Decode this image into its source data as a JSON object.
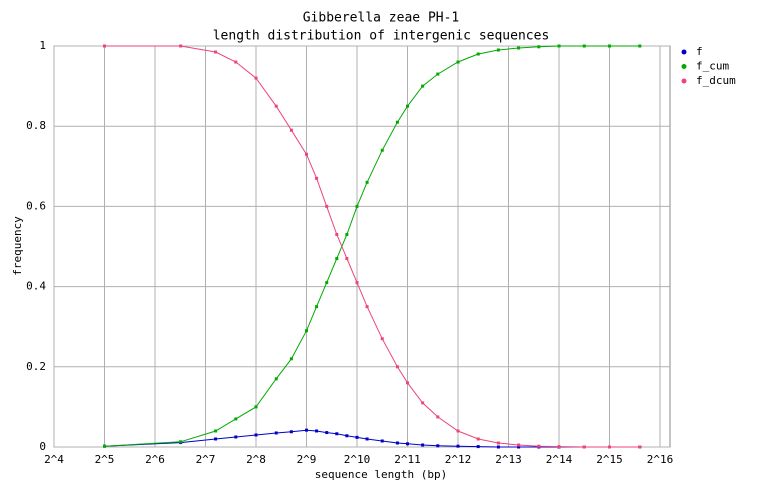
{
  "chart_data": {
    "type": "line",
    "title": "Gibberella zeae PH-1",
    "subtitle": "length distribution of intergenic sequences",
    "x_label": "sequence length (bp)",
    "y_label": "frequency",
    "x_scale": "log2",
    "grid": true,
    "legend": "top-right",
    "x": [
      32,
      91,
      147,
      194,
      256,
      338,
      416,
      512,
      588,
      676,
      776,
      891,
      1024,
      1176,
      1448,
      1783,
      2048,
      2521,
      3104,
      4096,
      5405,
      7131,
      9410,
      12417,
      16384,
      23170,
      32768,
      49667
    ],
    "series": [
      {
        "name": "f",
        "color": "#0000cc",
        "values": [
          0.002,
          0.011,
          0.02,
          0.025,
          0.03,
          0.035,
          0.038,
          0.042,
          0.04,
          0.036,
          0.033,
          0.028,
          0.024,
          0.02,
          0.015,
          0.01,
          0.008,
          0.005,
          0.003,
          0.002,
          0.001,
          0,
          0,
          0,
          0,
          0,
          0,
          0
        ]
      },
      {
        "name": "f_cum",
        "color": "#00aa00",
        "values": [
          0.002,
          0.013,
          0.04,
          0.07,
          0.1,
          0.17,
          0.22,
          0.29,
          0.35,
          0.41,
          0.47,
          0.53,
          0.6,
          0.66,
          0.74,
          0.81,
          0.85,
          0.9,
          0.93,
          0.96,
          0.98,
          0.99,
          0.995,
          0.998,
          1,
          1,
          1,
          1
        ]
      },
      {
        "name": "f_dcum",
        "color": "#ee4477",
        "values": [
          1,
          1,
          0.985,
          0.96,
          0.92,
          0.85,
          0.79,
          0.73,
          0.67,
          0.6,
          0.53,
          0.47,
          0.41,
          0.35,
          0.27,
          0.2,
          0.16,
          0.11,
          0.075,
          0.04,
          0.02,
          0.01,
          0.005,
          0.002,
          0.001,
          0,
          0,
          0
        ]
      }
    ],
    "xlim": [
      16,
      65536
    ],
    "xticks": [
      {
        "value": 16,
        "label": "2^4"
      },
      {
        "value": 32,
        "label": "2^5"
      },
      {
        "value": 64,
        "label": "2^6"
      },
      {
        "value": 128,
        "label": "2^7"
      },
      {
        "value": 256,
        "label": "2^8"
      },
      {
        "value": 512,
        "label": "2^9"
      },
      {
        "value": 1024,
        "label": "2^10"
      },
      {
        "value": 2048,
        "label": "2^11"
      },
      {
        "value": 4096,
        "label": "2^12"
      },
      {
        "value": 8192,
        "label": "2^13"
      },
      {
        "value": 16384,
        "label": "2^14"
      },
      {
        "value": 32768,
        "label": "2^15"
      },
      {
        "value": 65536,
        "label": "2^16"
      }
    ],
    "ylim": [
      0,
      1
    ],
    "yticks": [
      0,
      0.2,
      0.4,
      0.6,
      0.8,
      1
    ]
  }
}
